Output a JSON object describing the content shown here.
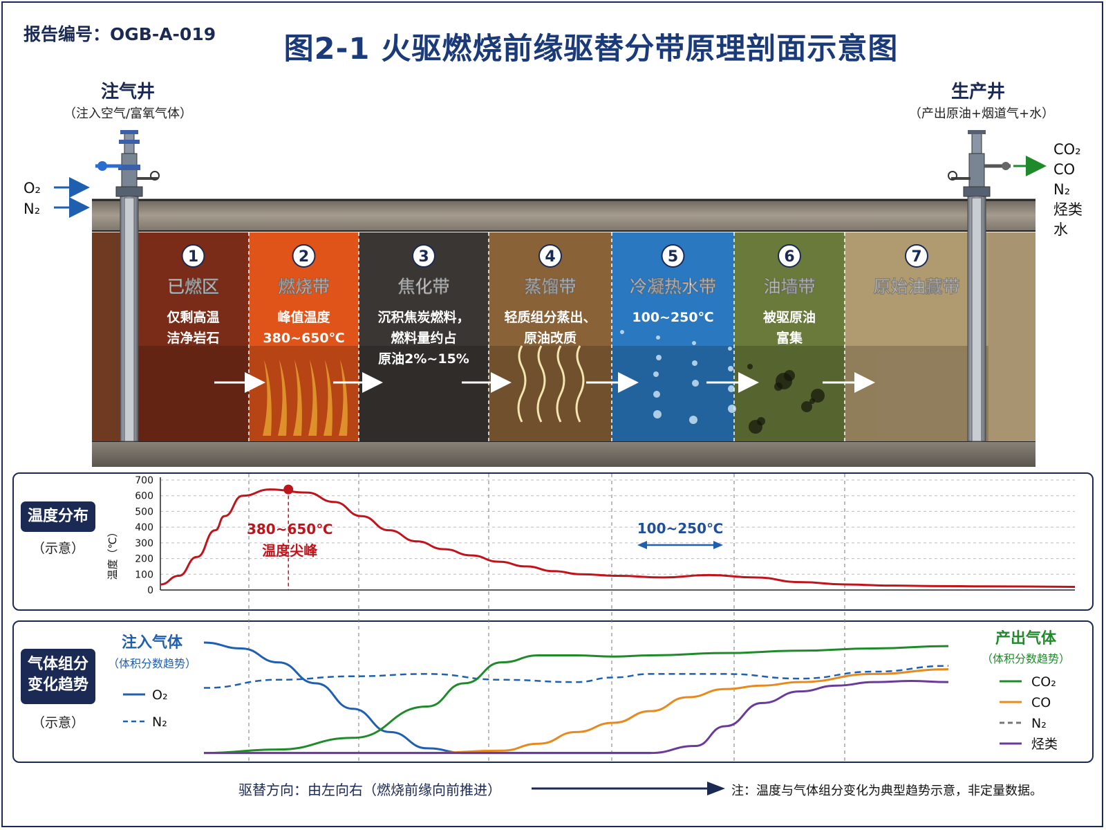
{
  "report_no": "报告编号：OGB-A-019",
  "title": "图2-1   火驱燃烧前缘驱替分带原理剖面示意图",
  "injection_well": {
    "name": "注气井",
    "sub": "（注入空气/富氧气体）",
    "inputs": [
      "O₂",
      "N₂"
    ]
  },
  "production_well": {
    "name": "生产井",
    "sub": "（产出原油+烟道气+水）",
    "outputs": [
      "CO₂",
      "CO",
      "N₂",
      "烃类",
      "水"
    ]
  },
  "zones": [
    {
      "num": "1",
      "name": "已燃区",
      "desc": [
        "仅剩高温",
        "洁净岩石"
      ]
    },
    {
      "num": "2",
      "name": "燃烧带",
      "desc": [
        "峰值温度",
        "380~650℃"
      ]
    },
    {
      "num": "3",
      "name": "焦化带",
      "desc": [
        "沉积焦炭燃料，",
        "燃料量约占",
        "原油2%~15%"
      ]
    },
    {
      "num": "4",
      "name": "蒸馏带",
      "desc": [
        "轻质组分蒸出、",
        "原油改质"
      ]
    },
    {
      "num": "5",
      "name": "冷凝热水带",
      "desc": [
        "100~250℃"
      ]
    },
    {
      "num": "6",
      "name": "油墙带",
      "desc": [
        "被驱原油",
        "富集"
      ]
    },
    {
      "num": "7",
      "name": "原始油藏带",
      "desc": []
    }
  ],
  "zone_colors": [
    "#7a2c18",
    "#e0541a",
    "#3a3634",
    "#8a6238",
    "#2a78c0",
    "#6a7a3a",
    "#b09a70"
  ],
  "temperature_panel": {
    "label": "温度分布",
    "sub": "（示意）",
    "ylabel": "温度（℃）",
    "peak_label": [
      "380~650℃",
      "温度尖峰"
    ],
    "range_label": "100~250℃",
    "chart_data": {
      "type": "line",
      "ylim": [
        0,
        700
      ],
      "yticks": [
        "0",
        "100",
        "200",
        "300",
        "400",
        "500",
        "600",
        "700"
      ],
      "x": [
        0,
        2,
        4,
        6,
        7,
        9,
        12,
        16,
        19,
        22,
        25,
        28,
        31,
        34,
        37,
        40,
        43,
        46,
        50,
        55,
        60,
        65,
        70,
        75,
        80,
        85,
        90,
        95,
        100
      ],
      "values": [
        35,
        90,
        210,
        380,
        470,
        600,
        640,
        620,
        560,
        470,
        380,
        310,
        260,
        220,
        180,
        150,
        120,
        100,
        90,
        80,
        95,
        80,
        50,
        35,
        28,
        25,
        23,
        22,
        20
      ],
      "peak": {
        "x": 14,
        "y": 640
      },
      "color": "#c0141c"
    }
  },
  "gas_panel": {
    "label": [
      "气体组分",
      "变化趋势"
    ],
    "sub": "（示意）",
    "inject_title": "注入气体",
    "inject_sub": "（体积分数趋势）",
    "produce_title": "产出气体",
    "produce_sub": "（体积分数趋势）",
    "legend_inject": [
      "O₂",
      "N₂"
    ],
    "legend_produce": [
      "CO₂",
      "CO",
      "N₂",
      "烃类"
    ],
    "chart_data": {
      "type": "line",
      "ylim": [
        0,
        1
      ],
      "series": [
        {
          "name": "O₂",
          "color": "#1f5fb0",
          "dash": false,
          "x": [
            0,
            5,
            10,
            15,
            20,
            25,
            30,
            35,
            40,
            50,
            60
          ],
          "values": [
            0.97,
            0.92,
            0.8,
            0.62,
            0.4,
            0.2,
            0.06,
            0.02,
            0.02,
            0.02,
            0.02
          ]
        },
        {
          "name": "N₂",
          "color": "#1f5fb0",
          "dash": true,
          "x": [
            0,
            10,
            20,
            30,
            40,
            50,
            55,
            60,
            70,
            80,
            90,
            100
          ],
          "values": [
            0.58,
            0.65,
            0.68,
            0.7,
            0.65,
            0.63,
            0.67,
            0.7,
            0.7,
            0.66,
            0.72,
            0.77
          ]
        },
        {
          "name": "CO₂",
          "color": "#1f8a2a",
          "dash": false,
          "x": [
            0,
            10,
            20,
            30,
            35,
            40,
            45,
            50,
            55,
            60,
            70,
            80,
            90,
            100
          ],
          "values": [
            0.02,
            0.05,
            0.15,
            0.42,
            0.62,
            0.8,
            0.86,
            0.86,
            0.85,
            0.86,
            0.88,
            0.9,
            0.92,
            0.94
          ]
        },
        {
          "name": "CO",
          "color": "#e8891c",
          "dash": false,
          "x": [
            0,
            30,
            40,
            45,
            50,
            55,
            60,
            65,
            70,
            75,
            80,
            90,
            100
          ],
          "values": [
            0.02,
            0.02,
            0.04,
            0.1,
            0.2,
            0.28,
            0.38,
            0.5,
            0.57,
            0.6,
            0.63,
            0.7,
            0.74
          ]
        },
        {
          "name": "烃类",
          "color": "#6a3a9a",
          "dash": false,
          "x": [
            0,
            30,
            60,
            66,
            70,
            75,
            80,
            85,
            90,
            95,
            100
          ],
          "values": [
            0.02,
            0.02,
            0.02,
            0.08,
            0.25,
            0.45,
            0.55,
            0.6,
            0.63,
            0.64,
            0.63
          ]
        }
      ]
    }
  },
  "footer_direction": "驱替方向：由左向右（燃烧前缘向前推进）",
  "footer_note": "注：温度与气体组分变化为典型趋势示意，非定量数据。",
  "colors": {
    "navy": "#1b2a55",
    "title_blue": "#1b3a7a",
    "temp_red": "#c0141c"
  }
}
